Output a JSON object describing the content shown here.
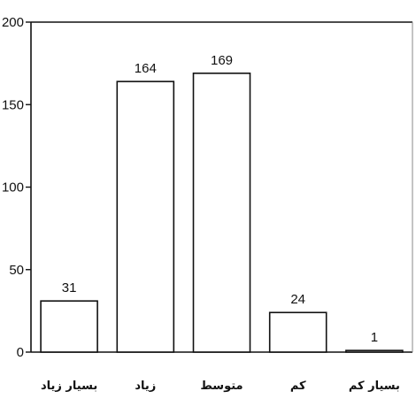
{
  "chart_data": {
    "type": "bar",
    "categories": [
      "بسیار زیاد",
      "زیاد",
      "متوسط",
      "کم",
      "بسیار کم"
    ],
    "values": [
      31,
      164,
      169,
      24,
      1
    ],
    "data_labels": [
      "31",
      "164",
      "169",
      "24",
      "1"
    ],
    "ylim": [
      0,
      200
    ],
    "yticks": [
      0,
      50,
      100,
      150,
      200
    ],
    "title": "",
    "xlabel": "",
    "ylabel": "",
    "grid": false,
    "legend": false,
    "bar_fill": "#ffffff",
    "bar_stroke": "#111111"
  }
}
